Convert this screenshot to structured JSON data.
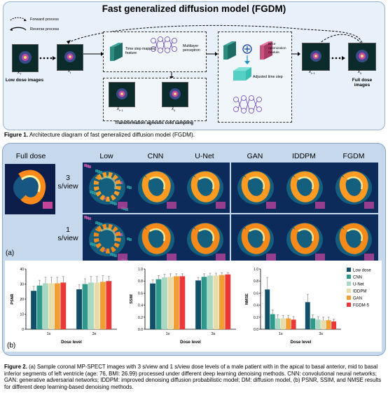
{
  "figure1": {
    "title": "Fast generalized diffusion model (FGDM)",
    "legend": {
      "forward": "Forward process",
      "reverse": "Reverse process"
    },
    "labels": {
      "low_dose": "Low dose images",
      "full_dose": "Full dose images",
      "x_T": "x",
      "x_T_sub": "T",
      "x_t": "x",
      "x_t_sub": "t",
      "x_t1": "x",
      "x_t1_sub": "t−1",
      "x_0": "x",
      "x_0_sub": "0",
      "xhat_t1": "x̂",
      "xhat_t1_sub": "t−1",
      "xhat_0": "x̂",
      "xhat_0_sub": "0",
      "time_step_feature": "Time step mapping feature",
      "mlp": "Multilayer perceptron",
      "error_module": "Error optimization module",
      "adjusted": "Adjusted time step",
      "cold_sampling": "Transformation agnostic cold sampling"
    },
    "caption_bold": "Figure 1.",
    "caption": " Architecture diagram of fast generalized diffusion model (FGDM)."
  },
  "figure2": {
    "columns": [
      "Full dose",
      "Low",
      "CNN",
      "U-Net",
      "GAN",
      "IDDPM",
      "FGDM"
    ],
    "rows": [
      "3 s/view",
      "1 s/view"
    ],
    "panel_a": "(a)",
    "panel_b": "(b)",
    "caption_bold": "Figure 2.",
    "caption": " (a) Sample coronal MP-SPECT images with 3 s/view and 1 s/view dose levels of a male patient with in the apical to basal anterior, mid to basal inferior segments of left ventricle (age: 76, BMI: 26.99) processed under different deep learning denoising methods. CNN: convolutional neural networks; GAN: generative adversarial networks; IDDPM: improved denoising diffusion probabilistic model; DM: diffusion model, (b) PSNR, SSIM, and NMSE results for different deep learning-based denoising methods."
  },
  "chart_data": [
    {
      "type": "bar",
      "ylabel": "PSNR",
      "xlabel": "Dose level",
      "categories": [
        "1s",
        "3s"
      ],
      "ylim": [
        0,
        40
      ],
      "yticks": [
        "0",
        "10",
        "20",
        "30",
        "40"
      ],
      "series": [
        {
          "name": "Low dose",
          "values": [
            25.5,
            26.5
          ],
          "err": [
            3,
            3
          ]
        },
        {
          "name": "CNN",
          "values": [
            29,
            30
          ],
          "err": [
            3.5,
            3.5
          ]
        },
        {
          "name": "U-Net",
          "values": [
            30.5,
            31
          ],
          "err": [
            4,
            4
          ]
        },
        {
          "name": "IDDPM",
          "values": [
            30.5,
            31
          ],
          "err": [
            4,
            4
          ]
        },
        {
          "name": "GAN",
          "values": [
            30.5,
            31.5
          ],
          "err": [
            4,
            4
          ]
        },
        {
          "name": "FGDM-5",
          "values": [
            31,
            32
          ],
          "err": [
            4,
            3
          ]
        }
      ]
    },
    {
      "type": "bar",
      "ylabel": "SSIM",
      "xlabel": "Dose level",
      "categories": [
        "1s",
        "3s"
      ],
      "ylim": [
        0,
        1.0
      ],
      "yticks": [
        "0.0",
        "0.2",
        "0.4",
        "0.6",
        "0.8",
        "1.0"
      ],
      "series": [
        {
          "name": "Low dose",
          "values": [
            0.76,
            0.81
          ],
          "err": [
            0.06,
            0.05
          ]
        },
        {
          "name": "CNN",
          "values": [
            0.83,
            0.87
          ],
          "err": [
            0.06,
            0.05
          ]
        },
        {
          "name": "U-Net",
          "values": [
            0.86,
            0.89
          ],
          "err": [
            0.05,
            0.04
          ]
        },
        {
          "name": "IDDPM",
          "values": [
            0.87,
            0.89
          ],
          "err": [
            0.05,
            0.04
          ]
        },
        {
          "name": "GAN",
          "values": [
            0.88,
            0.9
          ],
          "err": [
            0.04,
            0.04
          ]
        },
        {
          "name": "FGDM-5",
          "values": [
            0.88,
            0.91
          ],
          "err": [
            0.04,
            0.03
          ]
        }
      ]
    },
    {
      "type": "bar",
      "ylabel": "NMSE",
      "xlabel": "Dose level",
      "categories": [
        "1s",
        "3s"
      ],
      "ylim": [
        0,
        1.0
      ],
      "yticks": [
        "0.0",
        "0.2",
        "0.4",
        "0.6",
        "0.8",
        "1.0"
      ],
      "series": [
        {
          "name": "Low dose",
          "values": [
            0.66,
            0.45
          ],
          "err": [
            0.2,
            0.13
          ]
        },
        {
          "name": "CNN",
          "values": [
            0.25,
            0.18
          ],
          "err": [
            0.07,
            0.06
          ]
        },
        {
          "name": "U-Net",
          "values": [
            0.18,
            0.16
          ],
          "err": [
            0.06,
            0.05
          ]
        },
        {
          "name": "IDDPM",
          "values": [
            0.18,
            0.15
          ],
          "err": [
            0.05,
            0.05
          ]
        },
        {
          "name": "GAN",
          "values": [
            0.18,
            0.15
          ],
          "err": [
            0.05,
            0.05
          ]
        },
        {
          "name": "FGDM-5",
          "values": [
            0.16,
            0.13
          ],
          "err": [
            0.05,
            0.04
          ]
        }
      ],
      "legend_position": "right"
    }
  ],
  "colors": {
    "Low dose": "#12506a",
    "CNN": "#2f9a8b",
    "U-Net": "#a6d8c2",
    "IDDPM": "#e8dcaa",
    "GAN": "#f29e32",
    "FGDM-5": "#ea3838"
  }
}
